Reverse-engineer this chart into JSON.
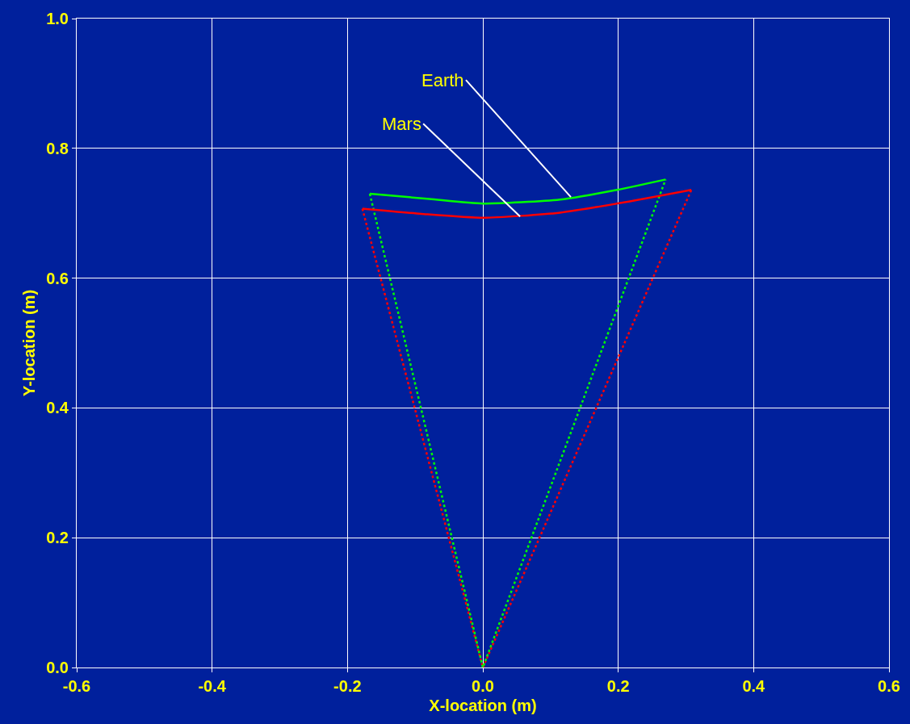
{
  "chart_data": {
    "type": "line",
    "xlabel": "X-location (m)",
    "ylabel": "Y-location (m)",
    "xlim": [
      -0.6,
      0.6
    ],
    "xticks": [
      {
        "value": -0.6,
        "label": "-0.6"
      },
      {
        "value": -0.4,
        "label": "-0.4"
      },
      {
        "value": -0.2,
        "label": "-0.2"
      },
      {
        "value": 0,
        "label": "0.0"
      },
      {
        "value": 0.2,
        "label": "0.2"
      },
      {
        "value": 0.4,
        "label": "0.4"
      },
      {
        "value": 0.6,
        "label": "0.6"
      }
    ],
    "ylim": [
      0,
      1
    ],
    "yticks": [
      {
        "value": 0,
        "label": "0.0"
      },
      {
        "value": 0.2,
        "label": "0.2"
      },
      {
        "value": 0.4,
        "label": "0.4"
      },
      {
        "value": 0.6,
        "label": "0.6"
      },
      {
        "value": 0.8,
        "label": "0.8"
      },
      {
        "value": 1,
        "label": "1.0"
      }
    ],
    "grid": true,
    "marker": "none",
    "series": [
      {
        "color": "#ff0000",
        "line_style": "dotted",
        "x": [
          -0.178,
          0,
          0.308
        ],
        "values": [
          0.707,
          0,
          0.736
        ]
      },
      {
        "color": "#00ff00",
        "line_style": "dotted",
        "x": [
          -0.167,
          0,
          0.27
        ],
        "values": [
          0.73,
          0,
          0.752
        ]
      },
      {
        "color": "#ff0000",
        "line_style": "solid",
        "x": [
          -0.178,
          -0.091,
          0,
          0.114,
          0.21,
          0.308
        ],
        "values": [
          0.707,
          0.699,
          0.693,
          0.701,
          0.717,
          0.736
        ]
      },
      {
        "color": "#00ff00",
        "line_style": "solid",
        "x": [
          -0.167,
          -0.079,
          0,
          0.114,
          0.198,
          0.27
        ],
        "values": [
          0.73,
          0.722,
          0.715,
          0.721,
          0.736,
          0.752
        ]
      }
    ],
    "annotations": [
      {
        "text": "Earth",
        "x": 0.13,
        "y": 0.725
      },
      {
        "text": "Mars",
        "x": 0.055,
        "y": 0.695
      }
    ]
  }
}
